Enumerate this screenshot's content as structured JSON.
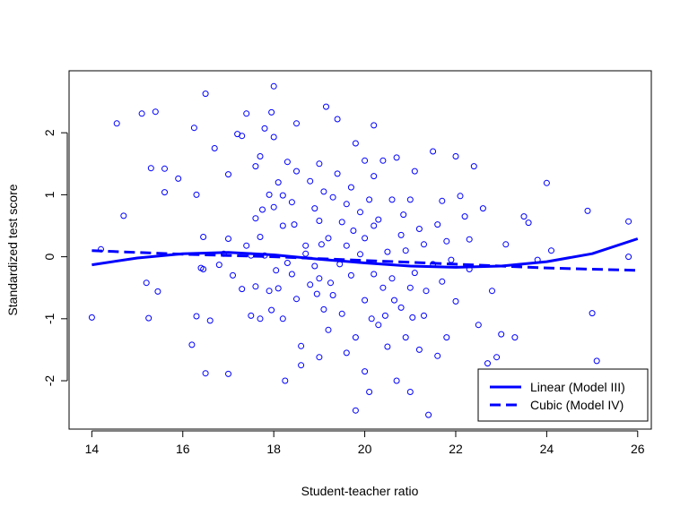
{
  "chart_data": {
    "type": "scatter",
    "title": "",
    "xlabel": "Student-teacher ratio",
    "ylabel": "Standardized test score",
    "xlim": [
      13.5,
      26.3
    ],
    "ylim": [
      -2.78,
      3.0
    ],
    "xticks": [
      14,
      16,
      18,
      20,
      22,
      24,
      26
    ],
    "yticks": [
      -2,
      -1,
      0,
      1,
      2
    ],
    "grid": false,
    "legend_position": "bottom-right",
    "colors": {
      "points": "#0000ff",
      "lines": "#0000ff",
      "axes": "#000000"
    },
    "series": [
      {
        "name": "",
        "kind": "points",
        "points": [
          [
            14.0,
            -0.98
          ],
          [
            14.2,
            0.12
          ],
          [
            14.55,
            2.15
          ],
          [
            14.7,
            0.66
          ],
          [
            15.1,
            2.31
          ],
          [
            15.2,
            -0.42
          ],
          [
            15.25,
            -0.99
          ],
          [
            15.3,
            1.43
          ],
          [
            15.4,
            2.34
          ],
          [
            15.45,
            -0.56
          ],
          [
            15.6,
            1.42
          ],
          [
            15.6,
            1.04
          ],
          [
            15.9,
            1.26
          ],
          [
            16.2,
            -1.42
          ],
          [
            16.25,
            2.08
          ],
          [
            16.3,
            -0.96
          ],
          [
            16.3,
            1.0
          ],
          [
            16.4,
            -0.18
          ],
          [
            16.45,
            -0.2
          ],
          [
            16.45,
            0.32
          ],
          [
            16.5,
            2.63
          ],
          [
            16.5,
            -1.88
          ],
          [
            16.6,
            -1.03
          ],
          [
            16.7,
            1.75
          ],
          [
            16.8,
            -0.13
          ],
          [
            16.9,
            0.05
          ],
          [
            17.0,
            1.33
          ],
          [
            17.0,
            -1.89
          ],
          [
            17.0,
            0.29
          ],
          [
            17.1,
            -0.3
          ],
          [
            17.2,
            1.98
          ],
          [
            17.3,
            -0.52
          ],
          [
            17.3,
            1.95
          ],
          [
            17.4,
            2.31
          ],
          [
            17.4,
            0.18
          ],
          [
            17.5,
            0.02
          ],
          [
            17.5,
            -0.95
          ],
          [
            17.6,
            1.46
          ],
          [
            17.6,
            -0.48
          ],
          [
            17.6,
            0.62
          ],
          [
            17.7,
            -1.0
          ],
          [
            17.7,
            1.62
          ],
          [
            17.7,
            0.32
          ],
          [
            17.75,
            0.76
          ],
          [
            17.8,
            2.07
          ],
          [
            17.8,
            0.02
          ],
          [
            17.9,
            1.0
          ],
          [
            17.9,
            -0.55
          ],
          [
            17.95,
            2.33
          ],
          [
            17.95,
            -0.86
          ],
          [
            18.0,
            2.75
          ],
          [
            18.0,
            0.8
          ],
          [
            18.0,
            1.93
          ],
          [
            18.05,
            -0.22
          ],
          [
            18.1,
            1.2
          ],
          [
            18.1,
            -0.51
          ],
          [
            18.2,
            -1.0
          ],
          [
            18.2,
            0.5
          ],
          [
            18.2,
            0.99
          ],
          [
            18.25,
            -2.0
          ],
          [
            18.3,
            1.53
          ],
          [
            18.3,
            -0.1
          ],
          [
            18.4,
            -0.28
          ],
          [
            18.4,
            0.88
          ],
          [
            18.5,
            2.15
          ],
          [
            18.5,
            1.38
          ],
          [
            18.5,
            -0.68
          ],
          [
            18.6,
            -1.44
          ],
          [
            18.6,
            -1.75
          ],
          [
            18.7,
            0.18
          ],
          [
            18.7,
            0.05
          ],
          [
            18.8,
            1.22
          ],
          [
            18.8,
            -0.45
          ],
          [
            18.9,
            0.78
          ],
          [
            18.9,
            -0.15
          ],
          [
            19.0,
            1.5
          ],
          [
            19.0,
            -0.35
          ],
          [
            19.0,
            0.58
          ],
          [
            19.0,
            -1.62
          ],
          [
            19.1,
            1.05
          ],
          [
            19.1,
            -0.85
          ],
          [
            19.15,
            2.42
          ],
          [
            19.2,
            0.3
          ],
          [
            19.2,
            -1.18
          ],
          [
            19.3,
            0.96
          ],
          [
            19.3,
            -0.62
          ],
          [
            19.4,
            2.22
          ],
          [
            19.4,
            1.34
          ],
          [
            19.5,
            -0.92
          ],
          [
            19.5,
            0.56
          ],
          [
            19.6,
            0.85
          ],
          [
            19.6,
            -1.55
          ],
          [
            19.6,
            0.18
          ],
          [
            19.7,
            -0.3
          ],
          [
            19.7,
            1.12
          ],
          [
            19.8,
            1.83
          ],
          [
            19.8,
            -2.48
          ],
          [
            19.8,
            -1.3
          ],
          [
            19.9,
            0.04
          ],
          [
            19.9,
            0.72
          ],
          [
            20.0,
            1.55
          ],
          [
            20.0,
            -0.7
          ],
          [
            20.0,
            -1.85
          ],
          [
            20.0,
            0.3
          ],
          [
            20.1,
            -2.18
          ],
          [
            20.1,
            0.92
          ],
          [
            20.2,
            0.5
          ],
          [
            20.2,
            -0.28
          ],
          [
            20.2,
            1.3
          ],
          [
            20.2,
            2.12
          ],
          [
            20.3,
            -1.1
          ],
          [
            20.3,
            0.6
          ],
          [
            20.4,
            -0.5
          ],
          [
            20.4,
            1.55
          ],
          [
            20.5,
            0.08
          ],
          [
            20.5,
            -1.45
          ],
          [
            20.6,
            0.92
          ],
          [
            20.6,
            -0.35
          ],
          [
            20.7,
            1.6
          ],
          [
            20.7,
            -2.0
          ],
          [
            20.8,
            -0.82
          ],
          [
            20.8,
            0.35
          ],
          [
            20.9,
            0.1
          ],
          [
            20.9,
            -1.3
          ],
          [
            21.0,
            0.92
          ],
          [
            21.0,
            -0.5
          ],
          [
            21.0,
            -2.18
          ],
          [
            21.1,
            1.38
          ],
          [
            21.1,
            -0.26
          ],
          [
            21.2,
            0.45
          ],
          [
            21.2,
            -1.5
          ],
          [
            21.3,
            0.2
          ],
          [
            21.3,
            -0.95
          ],
          [
            21.4,
            -2.55
          ],
          [
            21.5,
            1.7
          ],
          [
            21.5,
            -0.12
          ],
          [
            21.6,
            0.52
          ],
          [
            21.6,
            -1.6
          ],
          [
            21.7,
            0.9
          ],
          [
            21.7,
            -0.4
          ],
          [
            21.8,
            -1.3
          ],
          [
            21.8,
            0.25
          ],
          [
            21.9,
            -0.05
          ],
          [
            22.0,
            1.62
          ],
          [
            22.0,
            -0.72
          ],
          [
            22.1,
            0.98
          ],
          [
            22.2,
            0.65
          ],
          [
            22.3,
            -0.2
          ],
          [
            22.3,
            0.28
          ],
          [
            22.4,
            1.46
          ],
          [
            22.5,
            -1.1
          ],
          [
            22.6,
            0.78
          ],
          [
            22.7,
            -1.72
          ],
          [
            22.8,
            -0.55
          ],
          [
            22.9,
            -1.62
          ],
          [
            23.0,
            -1.25
          ],
          [
            23.1,
            0.2
          ],
          [
            23.3,
            -1.3
          ],
          [
            23.5,
            0.65
          ],
          [
            23.6,
            0.55
          ],
          [
            23.8,
            -0.05
          ],
          [
            24.0,
            1.19
          ],
          [
            24.1,
            0.1
          ],
          [
            24.9,
            0.74
          ],
          [
            25.0,
            -0.91
          ],
          [
            25.1,
            -1.68
          ],
          [
            25.8,
            0.57
          ],
          [
            25.8,
            0.0
          ],
          [
            21.05,
            -0.98
          ],
          [
            19.45,
            -0.12
          ],
          [
            18.95,
            -0.6
          ],
          [
            20.65,
            -0.7
          ],
          [
            19.25,
            -0.42
          ],
          [
            20.15,
            -1.0
          ],
          [
            21.35,
            -0.55
          ],
          [
            18.45,
            0.52
          ],
          [
            19.75,
            0.42
          ],
          [
            20.85,
            0.68
          ],
          [
            19.05,
            0.2
          ],
          [
            20.45,
            -0.95
          ]
        ]
      },
      {
        "name": "Linear (Model III)",
        "kind": "line",
        "dash": "solid",
        "x": [
          14,
          15,
          16,
          17,
          18,
          19,
          20,
          21,
          22,
          23,
          24,
          25,
          26
        ],
        "y": [
          -0.13,
          -0.02,
          0.05,
          0.07,
          0.03,
          -0.04,
          -0.1,
          -0.15,
          -0.17,
          -0.15,
          -0.08,
          0.05,
          0.29
        ]
      },
      {
        "name": "Cubic (Model IV)",
        "kind": "line",
        "dash": "dashed",
        "x": [
          14,
          15,
          16,
          17,
          18,
          19,
          20,
          21,
          22,
          23,
          24,
          25,
          26
        ],
        "y": [
          0.1,
          0.07,
          0.04,
          0.02,
          0.0,
          -0.03,
          -0.06,
          -0.09,
          -0.12,
          -0.15,
          -0.18,
          -0.2,
          -0.22
        ]
      }
    ]
  }
}
